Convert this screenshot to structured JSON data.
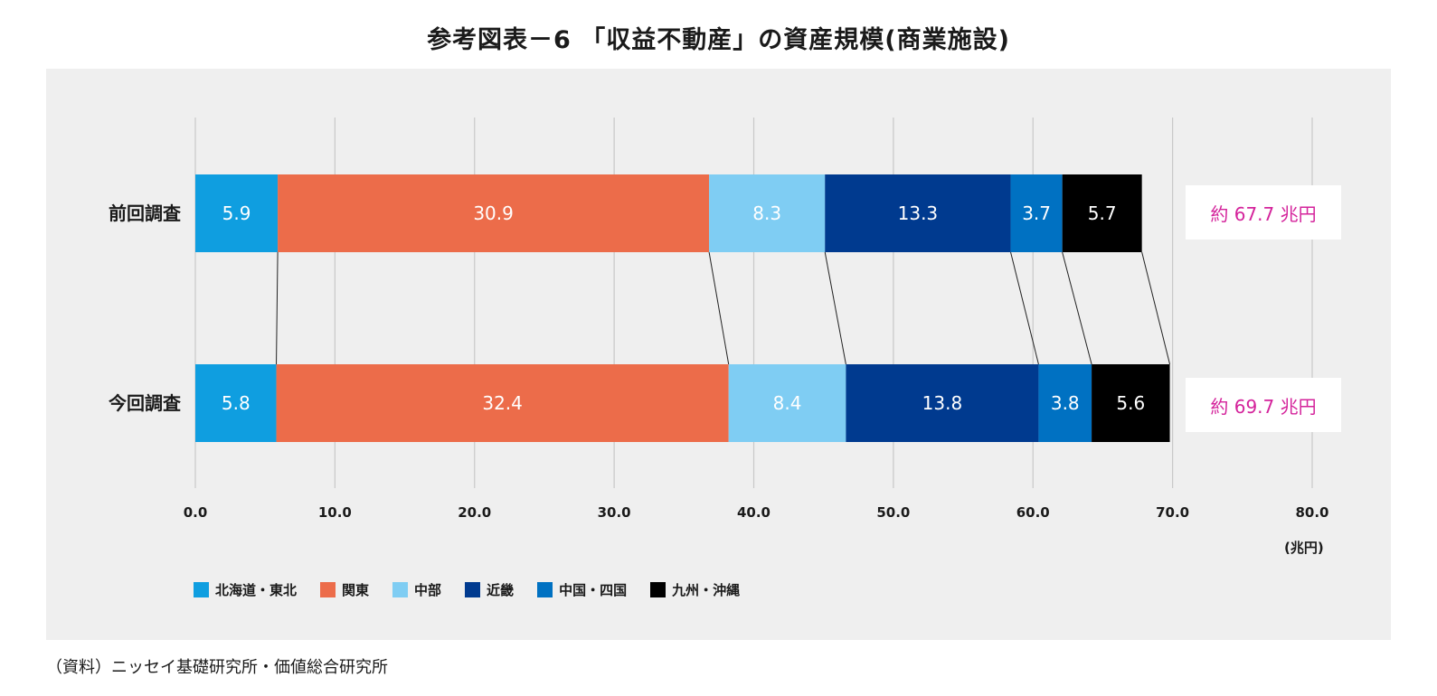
{
  "title": "参考図表－6 「収益不動産」の資産規模(商業施設)",
  "source": "（資料）ニッセイ基礎研究所・価値総合研究所",
  "chart_data": {
    "type": "bar",
    "orientation": "horizontal",
    "stacked": true,
    "categories": [
      "前回調査",
      "今回調査"
    ],
    "series": [
      {
        "name": "北海道・東北",
        "color": "#0f9ee0",
        "values": [
          5.9,
          5.8
        ]
      },
      {
        "name": "関東",
        "color": "#ec6c4a",
        "values": [
          30.9,
          32.4
        ]
      },
      {
        "name": "中部",
        "color": "#7fcdf3",
        "values": [
          8.3,
          8.4
        ]
      },
      {
        "name": "近畿",
        "color": "#003a8f",
        "values": [
          13.3,
          13.8
        ]
      },
      {
        "name": "中国・四国",
        "color": "#0071c2",
        "values": [
          3.7,
          3.8
        ]
      },
      {
        "name": "九州・沖縄",
        "color": "#000000",
        "values": [
          5.7,
          5.6
        ]
      }
    ],
    "totals": [
      "約 67.7 兆円",
      "約 69.7 兆円"
    ],
    "xlim": [
      0,
      80
    ],
    "xticks": [
      "0.0",
      "10.0",
      "20.0",
      "30.0",
      "40.0",
      "50.0",
      "60.0",
      "70.0",
      "80.0"
    ],
    "xunit": "(兆円)",
    "grid": true,
    "legend_position": "bottom-left",
    "total_color": "#d4239b"
  }
}
